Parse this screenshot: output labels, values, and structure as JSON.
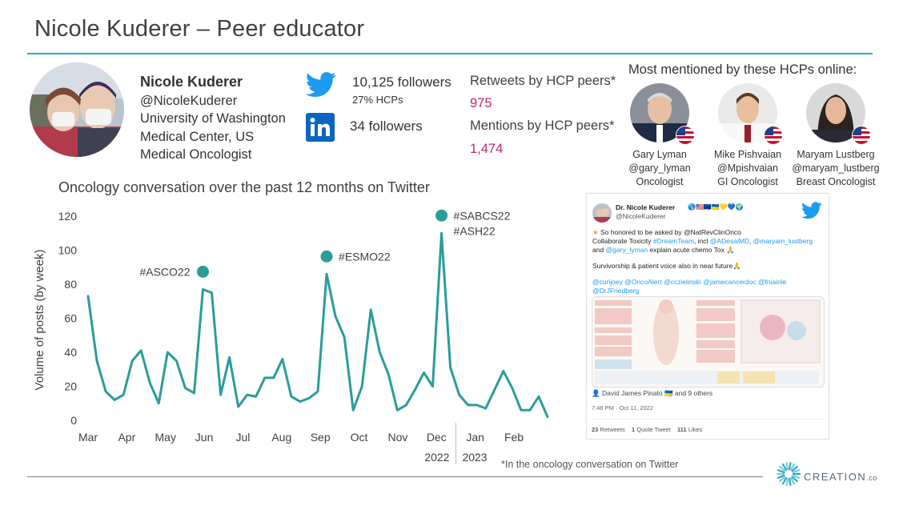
{
  "title": "Nicole Kuderer – Peer educator",
  "profile": {
    "name": "Nicole Kuderer",
    "handle": "@NicoleKuderer",
    "affiliation_line1": "University of Washington",
    "affiliation_line2": "Medical Center, US",
    "specialty": "Medical Oncologist"
  },
  "social": {
    "twitter_followers": "10,125 followers",
    "twitter_hcp_share": "27% HCPs",
    "linkedin_followers": "34 followers",
    "twitter_icon": "twitter-bird-icon",
    "linkedin_icon": "linkedin-icon"
  },
  "peer_stats": {
    "retweets_label": "Retweets by HCP peers*",
    "retweets_value": "975",
    "mentions_label": "Mentions by HCP peers*",
    "mentions_value": "1,474"
  },
  "hcp_mentions": {
    "heading": "Most mentioned by these HCPs online:",
    "people": [
      {
        "name": "Gary Lyman",
        "handle": "@gary_lyman",
        "role": "Oncologist",
        "flag": "us-flag-icon"
      },
      {
        "name": "Mike Pishvaian",
        "handle": "@Mpishvaian",
        "role": "GI Oncologist",
        "flag": "us-flag-icon"
      },
      {
        "name": "Maryam Lustberg",
        "handle": "@maryam_lustberg",
        "role": "Breast Oncologist",
        "flag": "us-flag-icon"
      }
    ]
  },
  "chart_title": "Oncology conversation over the past 12 months on Twitter",
  "chart_data": {
    "type": "line",
    "ylabel": "Volume of posts (by week)",
    "ylim": [
      0,
      120
    ],
    "yticks": [
      0,
      20,
      40,
      60,
      80,
      100,
      120
    ],
    "month_labels": [
      "Mar",
      "Apr",
      "May",
      "Jun",
      "Jul",
      "Aug",
      "Sep",
      "Oct",
      "Nov",
      "Dec",
      "Jan",
      "Feb"
    ],
    "year_labels": [
      "2022",
      "2023"
    ],
    "series": [
      {
        "values": [
          73,
          35,
          17,
          12,
          15,
          35,
          41,
          22,
          10,
          40,
          35,
          19,
          16,
          77,
          75,
          15,
          37,
          8,
          15,
          14,
          25,
          25,
          36,
          14,
          11,
          13,
          17,
          86,
          61,
          49,
          6,
          20,
          65,
          40,
          27,
          6,
          9,
          18,
          28,
          20,
          110,
          31,
          15,
          9,
          9,
          7,
          18,
          29,
          19,
          6,
          6,
          14,
          2
        ]
      }
    ],
    "events": [
      {
        "label": "#ASCO22",
        "week": 13
      },
      {
        "label": "#ESMO22",
        "week": 27
      },
      {
        "label": "#SABCS22",
        "label2": "#ASH22",
        "week": 40
      }
    ],
    "color": "#2a9d98",
    "grid": false
  },
  "tweet": {
    "author": "Dr. Nicole Kuderer",
    "handle": "@NicoleKuderer",
    "line1": "So honored to be asked by @NatRevClinOnco",
    "line2_a": "Collaborate Toxicity ",
    "line2_tag": "#DreamTeam",
    "line2_b": ", incl ",
    "line2_m1": "@ADesaiMD",
    "line2_c": ", ",
    "line2_m2": "@maryam_lustberg",
    "line3_a": "and ",
    "line3_m": "@gary_lyman",
    "line3_b": " explain acute chemo Tox",
    "line4": "Survivorship & patient voice also in near future",
    "mentions_line1": "@curijoey @OncoAlert @cczielinski @jamecancerdoc @fniainle",
    "mentions_line2": "@DrJFriedberg",
    "liked_by": "David James Pinato",
    "liked_suffix": " and 9 others",
    "timestamp": "7:46 PM · Oct 11, 2022",
    "retweets_n": "23",
    "retweets_l": " Retweets",
    "quotes_n": "1",
    "quotes_l": " Quote Tweet",
    "likes_n": "111",
    "likes_l": " Likes"
  },
  "footnote": "*In the oncology conversation on Twitter",
  "brand": {
    "name": "CREATION",
    "suffix": ".co",
    "accent": "#2aa9c7"
  }
}
